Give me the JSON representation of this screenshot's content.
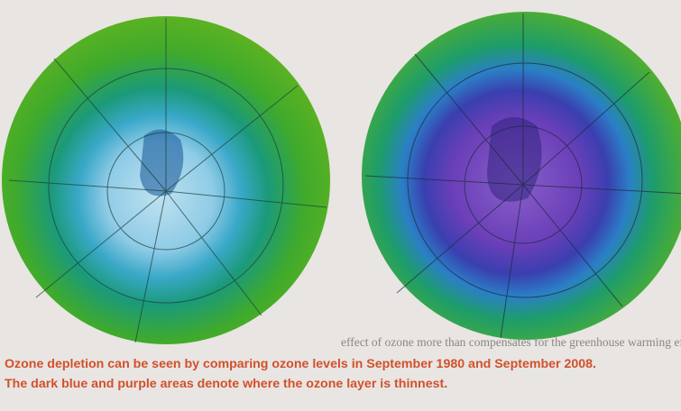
{
  "background_text": {
    "lines": [
      "effect of ozone more than compensates for the greenhouse warming effect of"
    ]
  },
  "caption": {
    "lines": [
      "Ozone depletion can be seen by comparing ozone levels in September 1980 and September 2008.",
      "The dark blue and purple areas denote where the ozone layer is thinnest."
    ]
  }
}
